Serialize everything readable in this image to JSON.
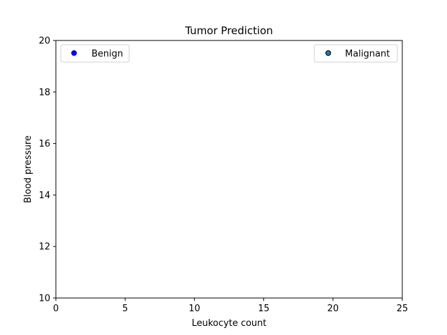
{
  "chart_data": {
    "type": "scatter",
    "title": "Tumor Prediction",
    "xlabel": "Leukocyte count",
    "ylabel": "Blood pressure",
    "xlim": [
      0,
      25
    ],
    "ylim": [
      10,
      20
    ],
    "xticks": [
      0,
      5,
      10,
      15,
      20,
      25
    ],
    "yticks": [
      10,
      12,
      14,
      16,
      18,
      20
    ],
    "grid": false,
    "series": [
      {
        "name": "Benign",
        "color": "#0000ff",
        "edgecolor": "#0000ff",
        "legend_position": "upper-left",
        "points": []
      },
      {
        "name": "Malignant",
        "color": "#1f77b4",
        "edgecolor": "#000000",
        "legend_position": "upper-right",
        "points": []
      }
    ]
  }
}
